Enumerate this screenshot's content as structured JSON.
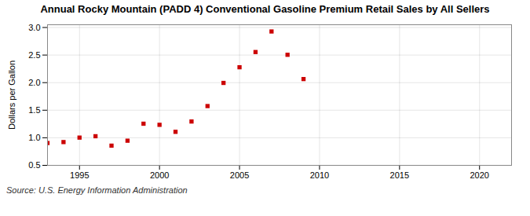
{
  "chart_data": {
    "type": "scatter",
    "title": "Annual Rocky Mountain (PADD 4) Conventional Gasoline Premium Retail Sales by All Sellers",
    "ylabel": "Dollars per Gallon",
    "source": "Source: U.S. Energy Information Administration",
    "x": [
      1993,
      1994,
      1995,
      1996,
      1997,
      1998,
      1999,
      2000,
      2001,
      2002,
      2003,
      2004,
      2005,
      2006,
      2007,
      2008,
      2009
    ],
    "values": [
      0.905,
      0.922,
      1.003,
      1.028,
      0.857,
      0.947,
      1.255,
      1.235,
      1.108,
      1.295,
      1.575,
      1.995,
      2.279,
      2.555,
      2.928,
      2.505,
      2.065
    ],
    "color": "#cc0000",
    "marker": "square",
    "xlim": [
      1993,
      2022
    ],
    "ylim": [
      0.5,
      3.05
    ],
    "xticks": [
      1995,
      2000,
      2005,
      2010,
      2015,
      2020
    ],
    "yticks": [
      0.5,
      {
        "value": 1,
        "label": "1.0"
      },
      1.5,
      {
        "value": 2,
        "label": "2.0"
      },
      2.5,
      {
        "value": 3,
        "label": "3.0"
      }
    ],
    "grid": true
  }
}
